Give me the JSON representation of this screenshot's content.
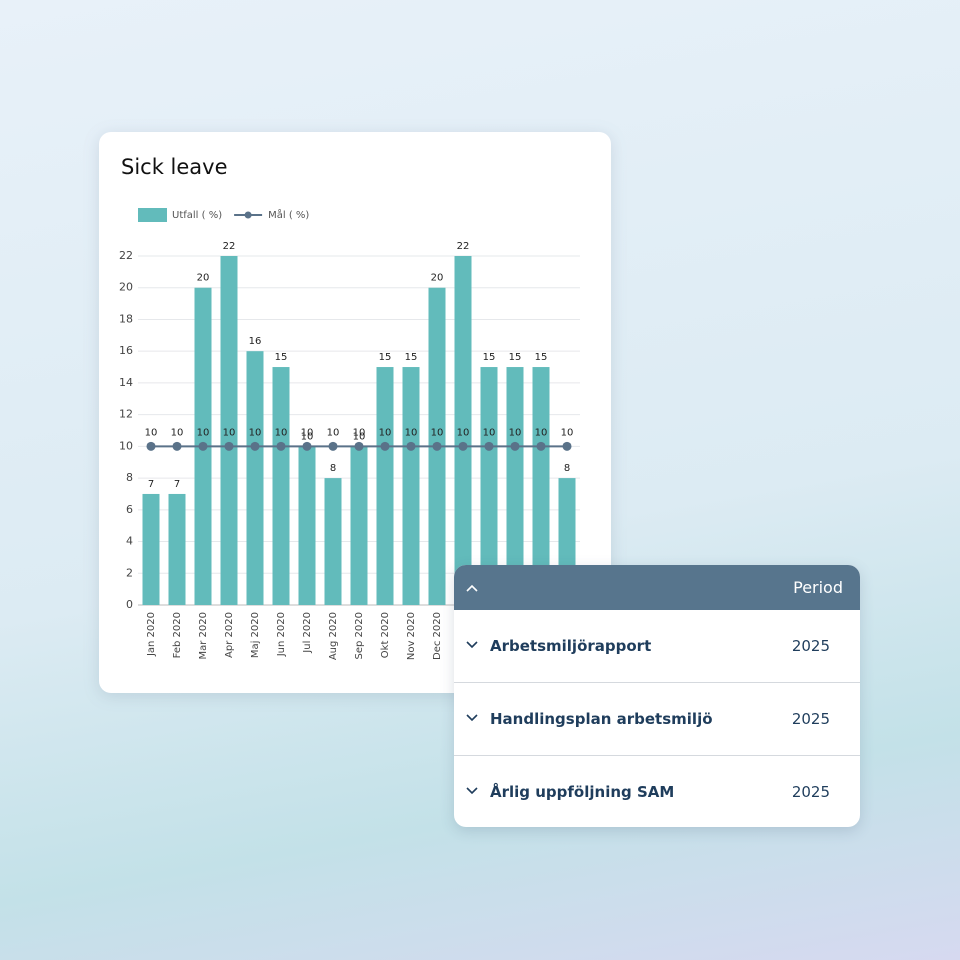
{
  "chart_data": {
    "type": "bar",
    "title": "Sick leave",
    "categories": [
      "Jan 2020",
      "Feb 2020",
      "Mar 2020",
      "Apr 2020",
      "Maj 2020",
      "Jun 2020",
      "Jul 2020",
      "Aug 2020",
      "Sep 2020",
      "Okt 2020",
      "Nov 2020",
      "Dec 2020",
      null,
      null,
      null,
      null,
      null
    ],
    "series": [
      {
        "name": "Utfall ( %)",
        "type": "bar",
        "color": "#62bbbb",
        "values": [
          7,
          7,
          20,
          22,
          16,
          15,
          10,
          8,
          10,
          15,
          15,
          20,
          22,
          15,
          15,
          15,
          8
        ]
      },
      {
        "name": "Mål ( %)",
        "type": "line",
        "color": "#5a7289",
        "values": [
          10,
          10,
          10,
          10,
          10,
          10,
          10,
          10,
          10,
          10,
          10,
          10,
          10,
          10,
          10,
          10,
          10
        ]
      }
    ],
    "ylim": [
      0,
      22
    ],
    "yticks": [
      0,
      2,
      4,
      6,
      8,
      10,
      12,
      14,
      16,
      18,
      20,
      22
    ],
    "grid": true,
    "legend": "top-left"
  },
  "table": {
    "header": {
      "period": "Period"
    },
    "rows": [
      [
        "Arbetsmiljörapport",
        "2025"
      ],
      [
        "Handlingsplan arbetsmiljö",
        "2025"
      ],
      [
        "Årlig uppföljning SAM",
        "2025"
      ]
    ]
  }
}
